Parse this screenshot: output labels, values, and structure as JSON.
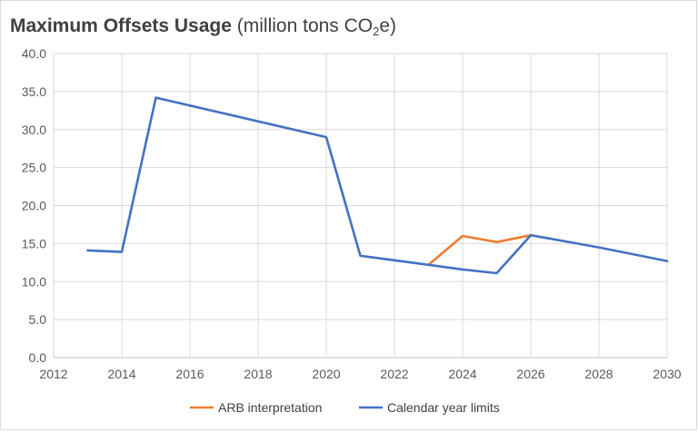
{
  "chart_data": {
    "type": "line",
    "title": "Maximum Offsets Usage",
    "title_units": {
      "prefix": "(million tons CO",
      "subscript": "2",
      "suffix": "e)"
    },
    "xlabel": "",
    "ylabel": "",
    "xlim": [
      2012,
      2030
    ],
    "ylim": [
      0,
      40
    ],
    "x_ticks": [
      2012,
      2014,
      2016,
      2018,
      2020,
      2022,
      2024,
      2026,
      2028,
      2030
    ],
    "x_tick_labels": [
      "2012",
      "2014",
      "2016",
      "2018",
      "2020",
      "2022",
      "2024",
      "2026",
      "2028",
      "2030"
    ],
    "y_ticks": [
      0,
      5,
      10,
      15,
      20,
      25,
      30,
      35,
      40
    ],
    "y_tick_labels": [
      "0.0",
      "5.0",
      "10.0",
      "15.0",
      "20.0",
      "25.0",
      "30.0",
      "35.0",
      "40.0"
    ],
    "grid": true,
    "legend_position": "bottom",
    "series": [
      {
        "name": "ARB interpretation",
        "color": "#ED7D31",
        "x": [
          2023,
          2024,
          2025,
          2026
        ],
        "y": [
          12.2,
          16.0,
          15.2,
          16.1
        ]
      },
      {
        "name": "Calendar year limits",
        "color": "#4472C4",
        "x": [
          2013,
          2014,
          2015,
          2020,
          2021,
          2022,
          2023,
          2024,
          2025,
          2026,
          2028,
          2030
        ],
        "y": [
          14.1,
          13.9,
          34.2,
          29.0,
          13.4,
          12.8,
          12.2,
          11.6,
          11.1,
          16.1,
          14.5,
          12.7
        ]
      }
    ]
  }
}
